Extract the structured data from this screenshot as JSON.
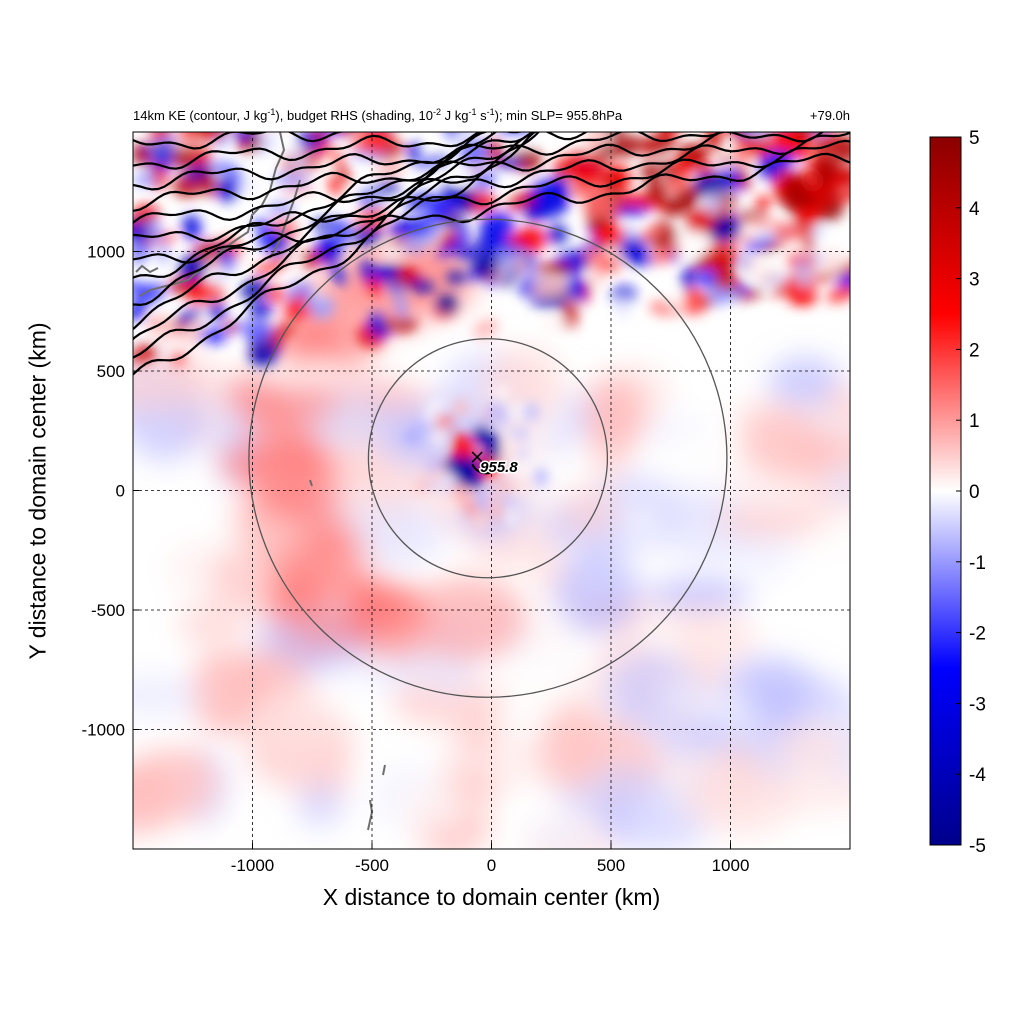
{
  "title": {
    "left_parts": [
      {
        "t": "14km KE (contour, J kg"
      },
      {
        "t": "-1",
        "sup": true
      },
      {
        "t": "), budget RHS (shading, 10"
      },
      {
        "t": "-2",
        "sup": true
      },
      {
        "t": " J kg"
      },
      {
        "t": "-1",
        "sup": true
      },
      {
        "t": " s"
      },
      {
        "t": "-1",
        "sup": true
      },
      {
        "t": "); min SLP= 955.8hPa"
      }
    ],
    "right": "+79.0h"
  },
  "chart_data": {
    "type": "heatmap",
    "xlabel": "X distance to domain center (km)",
    "ylabel": "Y distance to domain center (km)",
    "xlim": [
      -1500,
      1500
    ],
    "ylim": [
      -1500,
      1500
    ],
    "x_ticks": [
      -1000,
      -500,
      0,
      500,
      1000
    ],
    "x_tick_labels": [
      "-1000",
      "-500",
      "0",
      "500",
      "1000"
    ],
    "y_ticks": [
      -1000,
      -500,
      0,
      500,
      1000
    ],
    "y_tick_labels": [
      "-1000",
      "-500",
      "0",
      "500",
      "1000"
    ],
    "grid": true,
    "grid_style": "dashed",
    "colorbar": {
      "min": -5,
      "max": 5,
      "ticks": [
        5,
        4,
        3,
        2,
        1,
        0,
        -1,
        -2,
        -3,
        -4,
        -5
      ],
      "tick_labels": [
        "5",
        "4",
        "3",
        "2",
        "1",
        "0",
        "-1",
        "-2",
        "-3",
        "-4",
        "-5"
      ],
      "colormap": [
        "#00008b",
        "#0000ff",
        "#ffffff",
        "#ff0000",
        "#8b0000"
      ]
    },
    "storm_center": {
      "x": -60,
      "y": 140,
      "marker": "x",
      "label": "955.8"
    },
    "range_rings_km": [
      500,
      1000
    ],
    "ke_contour_levels_count": 13
  }
}
